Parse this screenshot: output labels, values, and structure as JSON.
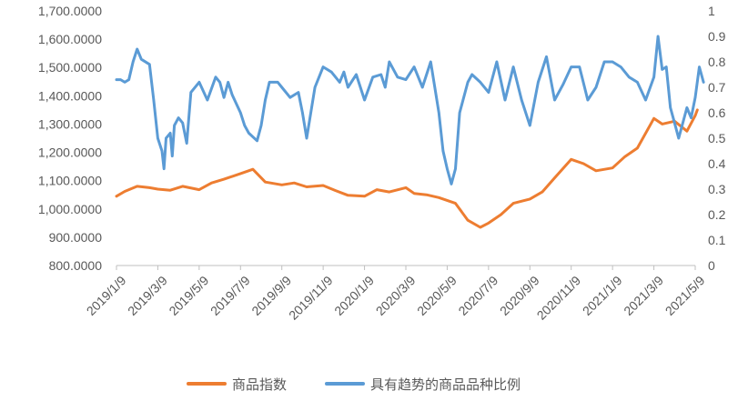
{
  "chart_data": {
    "type": "line",
    "title": "",
    "xlabel": "",
    "ylabel": "",
    "y_left": {
      "min": 800,
      "max": 1700,
      "step": 100,
      "ticks": [
        "800.0000",
        "900.0000",
        "1,000.0000",
        "1,100.0000",
        "1,200.0000",
        "1,300.0000",
        "1,400.0000",
        "1,500.0000",
        "1,600.0000",
        "1,700.0000"
      ]
    },
    "y_right": {
      "min": 0,
      "max": 1,
      "step": 0.1,
      "ticks": [
        "0",
        "0.1",
        "0.2",
        "0.3",
        "0.4",
        "0.5",
        "0.6",
        "0.7",
        "0.8",
        "0.9",
        "1"
      ]
    },
    "x_ticks": [
      "2019/1/9",
      "2019/3/9",
      "2019/5/9",
      "2019/7/9",
      "2019/9/9",
      "2019/11/9",
      "2020/1/9",
      "2020/3/9",
      "2020/5/9",
      "2020/7/9",
      "2020/9/9",
      "2020/11/9",
      "2021/1/9",
      "2021/3/9",
      "2021/5/9"
    ],
    "series": [
      {
        "name": "商品指数",
        "axis": "left",
        "color": "#ED7D31",
        "x": [
          0,
          0.2,
          0.5,
          0.8,
          1,
          1.3,
          1.6,
          2,
          2.3,
          2.6,
          3,
          3.3,
          3.6,
          4,
          4.3,
          4.6,
          5,
          5.3,
          5.6,
          6,
          6.3,
          6.6,
          7,
          7.2,
          7.5,
          7.8,
          8,
          8.2,
          8.5,
          8.8,
          9,
          9.3,
          9.6,
          10,
          10.3,
          10.6,
          11,
          11.3,
          11.6,
          12,
          12.3,
          12.6,
          13,
          13.2,
          13.5,
          13.8,
          14,
          14.05
        ],
        "values": [
          1045,
          1062,
          1080,
          1075,
          1070,
          1066,
          1080,
          1068,
          1092,
          1105,
          1125,
          1140,
          1095,
          1085,
          1092,
          1078,
          1083,
          1065,
          1048,
          1045,
          1068,
          1060,
          1075,
          1055,
          1050,
          1040,
          1030,
          1020,
          960,
          935,
          950,
          980,
          1020,
          1035,
          1060,
          1110,
          1175,
          1160,
          1135,
          1145,
          1185,
          1215,
          1320,
          1300,
          1310,
          1275,
          1330,
          1350
        ]
      },
      {
        "name": "具有趋势的商品品种比例",
        "axis": "right",
        "color": "#5B9BD5",
        "x": [
          0,
          0.1,
          0.2,
          0.3,
          0.4,
          0.5,
          0.6,
          0.8,
          0.9,
          1,
          1.1,
          1.15,
          1.2,
          1.3,
          1.35,
          1.4,
          1.5,
          1.6,
          1.7,
          1.8,
          2,
          2.2,
          2.4,
          2.5,
          2.6,
          2.7,
          2.8,
          3,
          3.1,
          3.2,
          3.4,
          3.5,
          3.6,
          3.7,
          3.8,
          3.9,
          4,
          4.2,
          4.4,
          4.5,
          4.6,
          4.8,
          5,
          5.2,
          5.4,
          5.5,
          5.6,
          5.8,
          6,
          6.2,
          6.4,
          6.5,
          6.6,
          6.8,
          7,
          7.2,
          7.4,
          7.6,
          7.8,
          7.9,
          8,
          8.1,
          8.2,
          8.3,
          8.5,
          8.6,
          8.8,
          9,
          9.2,
          9.4,
          9.6,
          9.8,
          10,
          10.2,
          10.4,
          10.6,
          10.8,
          11,
          11.2,
          11.4,
          11.6,
          11.8,
          12,
          12.2,
          12.4,
          12.6,
          12.8,
          13,
          13.1,
          13.2,
          13.3,
          13.4,
          13.5,
          13.6,
          13.8,
          13.9,
          14,
          14.1,
          14.2
        ],
        "values": [
          0.73,
          0.73,
          0.72,
          0.73,
          0.8,
          0.85,
          0.81,
          0.79,
          0.65,
          0.5,
          0.45,
          0.38,
          0.5,
          0.52,
          0.43,
          0.55,
          0.58,
          0.56,
          0.48,
          0.68,
          0.72,
          0.65,
          0.74,
          0.72,
          0.66,
          0.72,
          0.67,
          0.6,
          0.55,
          0.52,
          0.49,
          0.55,
          0.65,
          0.72,
          0.72,
          0.72,
          0.7,
          0.66,
          0.68,
          0.6,
          0.5,
          0.7,
          0.78,
          0.76,
          0.72,
          0.76,
          0.7,
          0.75,
          0.65,
          0.74,
          0.75,
          0.7,
          0.8,
          0.74,
          0.73,
          0.78,
          0.7,
          0.8,
          0.6,
          0.45,
          0.38,
          0.32,
          0.38,
          0.6,
          0.72,
          0.75,
          0.72,
          0.68,
          0.8,
          0.65,
          0.78,
          0.65,
          0.55,
          0.72,
          0.82,
          0.65,
          0.71,
          0.78,
          0.78,
          0.65,
          0.7,
          0.8,
          0.8,
          0.78,
          0.74,
          0.72,
          0.65,
          0.74,
          0.9,
          0.77,
          0.78,
          0.62,
          0.56,
          0.5,
          0.62,
          0.58,
          0.66,
          0.78,
          0.72
        ]
      }
    ],
    "legend": {
      "position": "bottom"
    }
  }
}
